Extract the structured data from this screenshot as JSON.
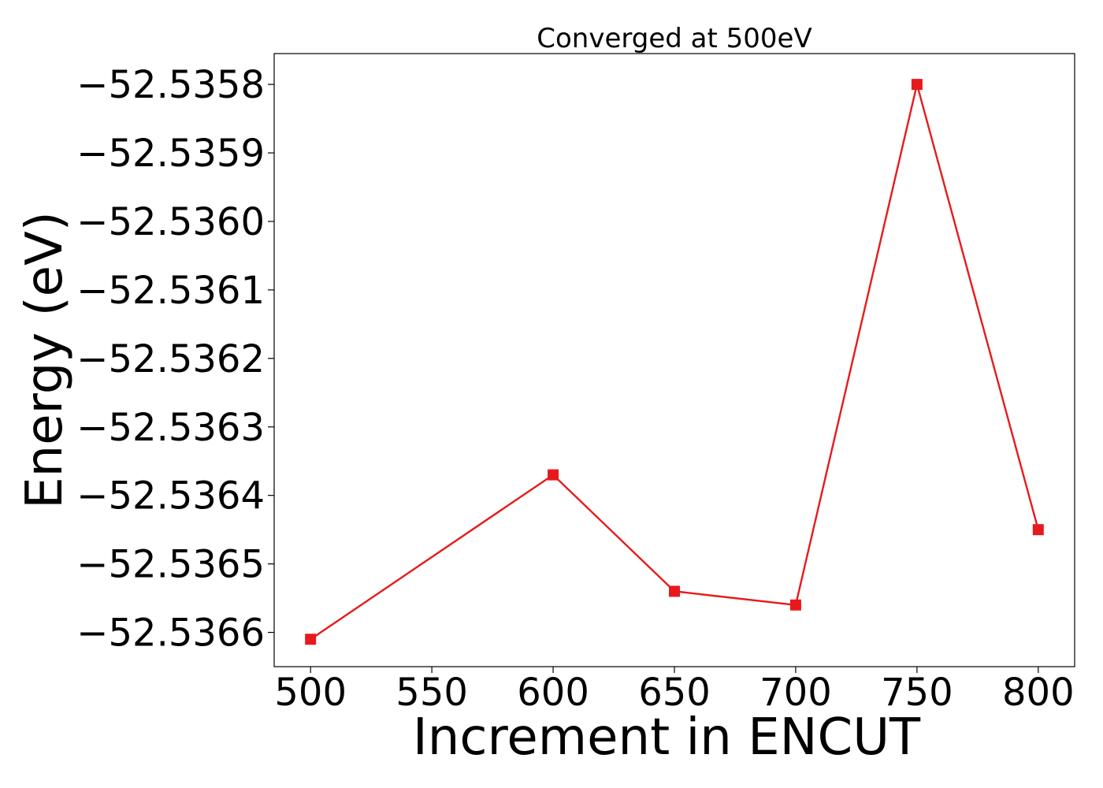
{
  "chart_data": {
    "type": "line",
    "title": "Converged at 500eV",
    "xlabel": "Increment in ENCUT",
    "ylabel": "Energy (eV)",
    "x": [
      500,
      600,
      650,
      700,
      750,
      800
    ],
    "series": [
      {
        "values": [
          -52.53661,
          -52.53637,
          -52.53654,
          -52.53656,
          -52.5358,
          -52.53645
        ],
        "color": "#e8191c",
        "marker": "square"
      }
    ],
    "xticks": [
      500,
      550,
      600,
      650,
      700,
      750,
      800
    ],
    "xtick_labels": [
      "500",
      "550",
      "600",
      "650",
      "700",
      "750",
      "800"
    ],
    "yticks": [
      -52.5358,
      -52.5359,
      -52.536,
      -52.5361,
      -52.5362,
      -52.5363,
      -52.5364,
      -52.5365,
      -52.5366
    ],
    "ytick_labels": [
      "−52.5358",
      "−52.5359",
      "−52.5360",
      "−52.5361",
      "−52.5362",
      "−52.5363",
      "−52.5364",
      "−52.5365",
      "−52.5366"
    ],
    "xlim": [
      485,
      815
    ],
    "ylim": [
      -52.53665,
      -52.535755
    ],
    "grid": false,
    "legend": false
  }
}
